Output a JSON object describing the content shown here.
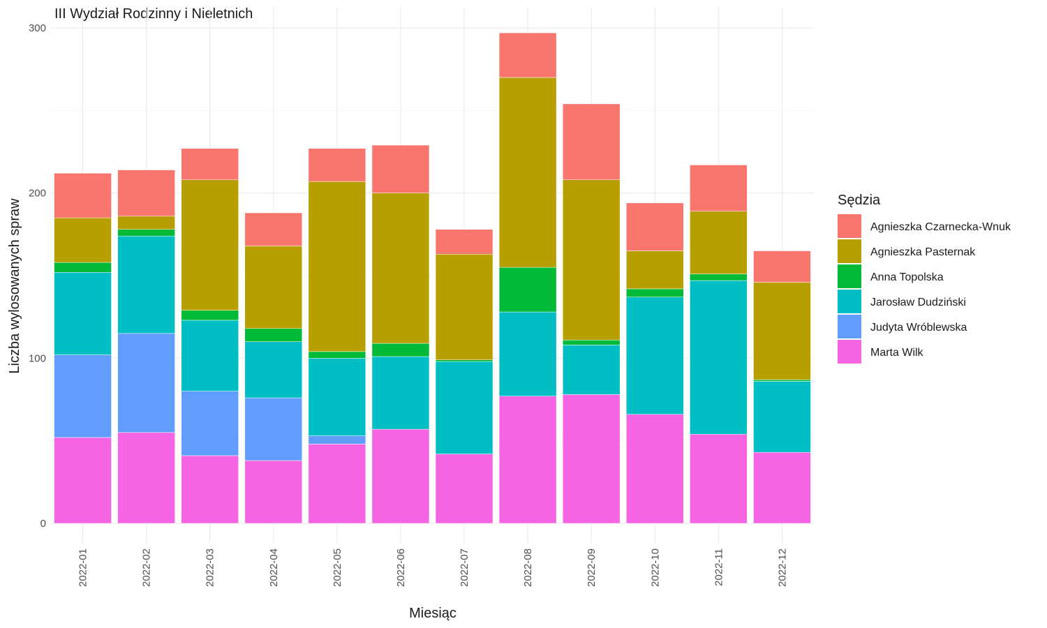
{
  "chart_data": {
    "type": "bar",
    "stacked": true,
    "title": "III Wydział Rodzinny i Nieletnich",
    "xlabel": "Miesiąc",
    "ylabel": "Liczba wylosowanych spraw",
    "ylim": [
      0,
      300
    ],
    "yticks": [
      0,
      100,
      200,
      300
    ],
    "grid": true,
    "legend_title": "Sędzia",
    "legend_position": "right",
    "categories": [
      "2022-01",
      "2022-02",
      "2022-03",
      "2022-04",
      "2022-05",
      "2022-06",
      "2022-07",
      "2022-08",
      "2022-09",
      "2022-10",
      "2022-11",
      "2022-12"
    ],
    "series": [
      {
        "name": "Agnieszka Czarnecka-Wnuk",
        "color": "#F8766D",
        "values": [
          27,
          28,
          19,
          20,
          20,
          29,
          15,
          27,
          46,
          29,
          28,
          19
        ]
      },
      {
        "name": "Agnieszka Pasternak",
        "color": "#B79F00",
        "values": [
          27,
          8,
          79,
          50,
          103,
          91,
          64,
          115,
          97,
          23,
          38,
          59
        ]
      },
      {
        "name": "Anna Topolska",
        "color": "#00BA38",
        "values": [
          6,
          4,
          6,
          8,
          4,
          8,
          1,
          27,
          3,
          5,
          4,
          1
        ]
      },
      {
        "name": "Jarosław Dudziński",
        "color": "#00BFC4",
        "values": [
          50,
          59,
          43,
          34,
          47,
          44,
          56,
          51,
          30,
          71,
          93,
          43
        ]
      },
      {
        "name": "Judyta Wróblewska",
        "color": "#619CFF",
        "values": [
          50,
          60,
          39,
          38,
          5,
          0,
          0,
          0,
          0,
          0,
          0,
          0
        ]
      },
      {
        "name": "Marta Wilk",
        "color": "#F564E3",
        "values": [
          52,
          55,
          41,
          38,
          48,
          57,
          42,
          77,
          78,
          66,
          54,
          43
        ]
      }
    ]
  }
}
